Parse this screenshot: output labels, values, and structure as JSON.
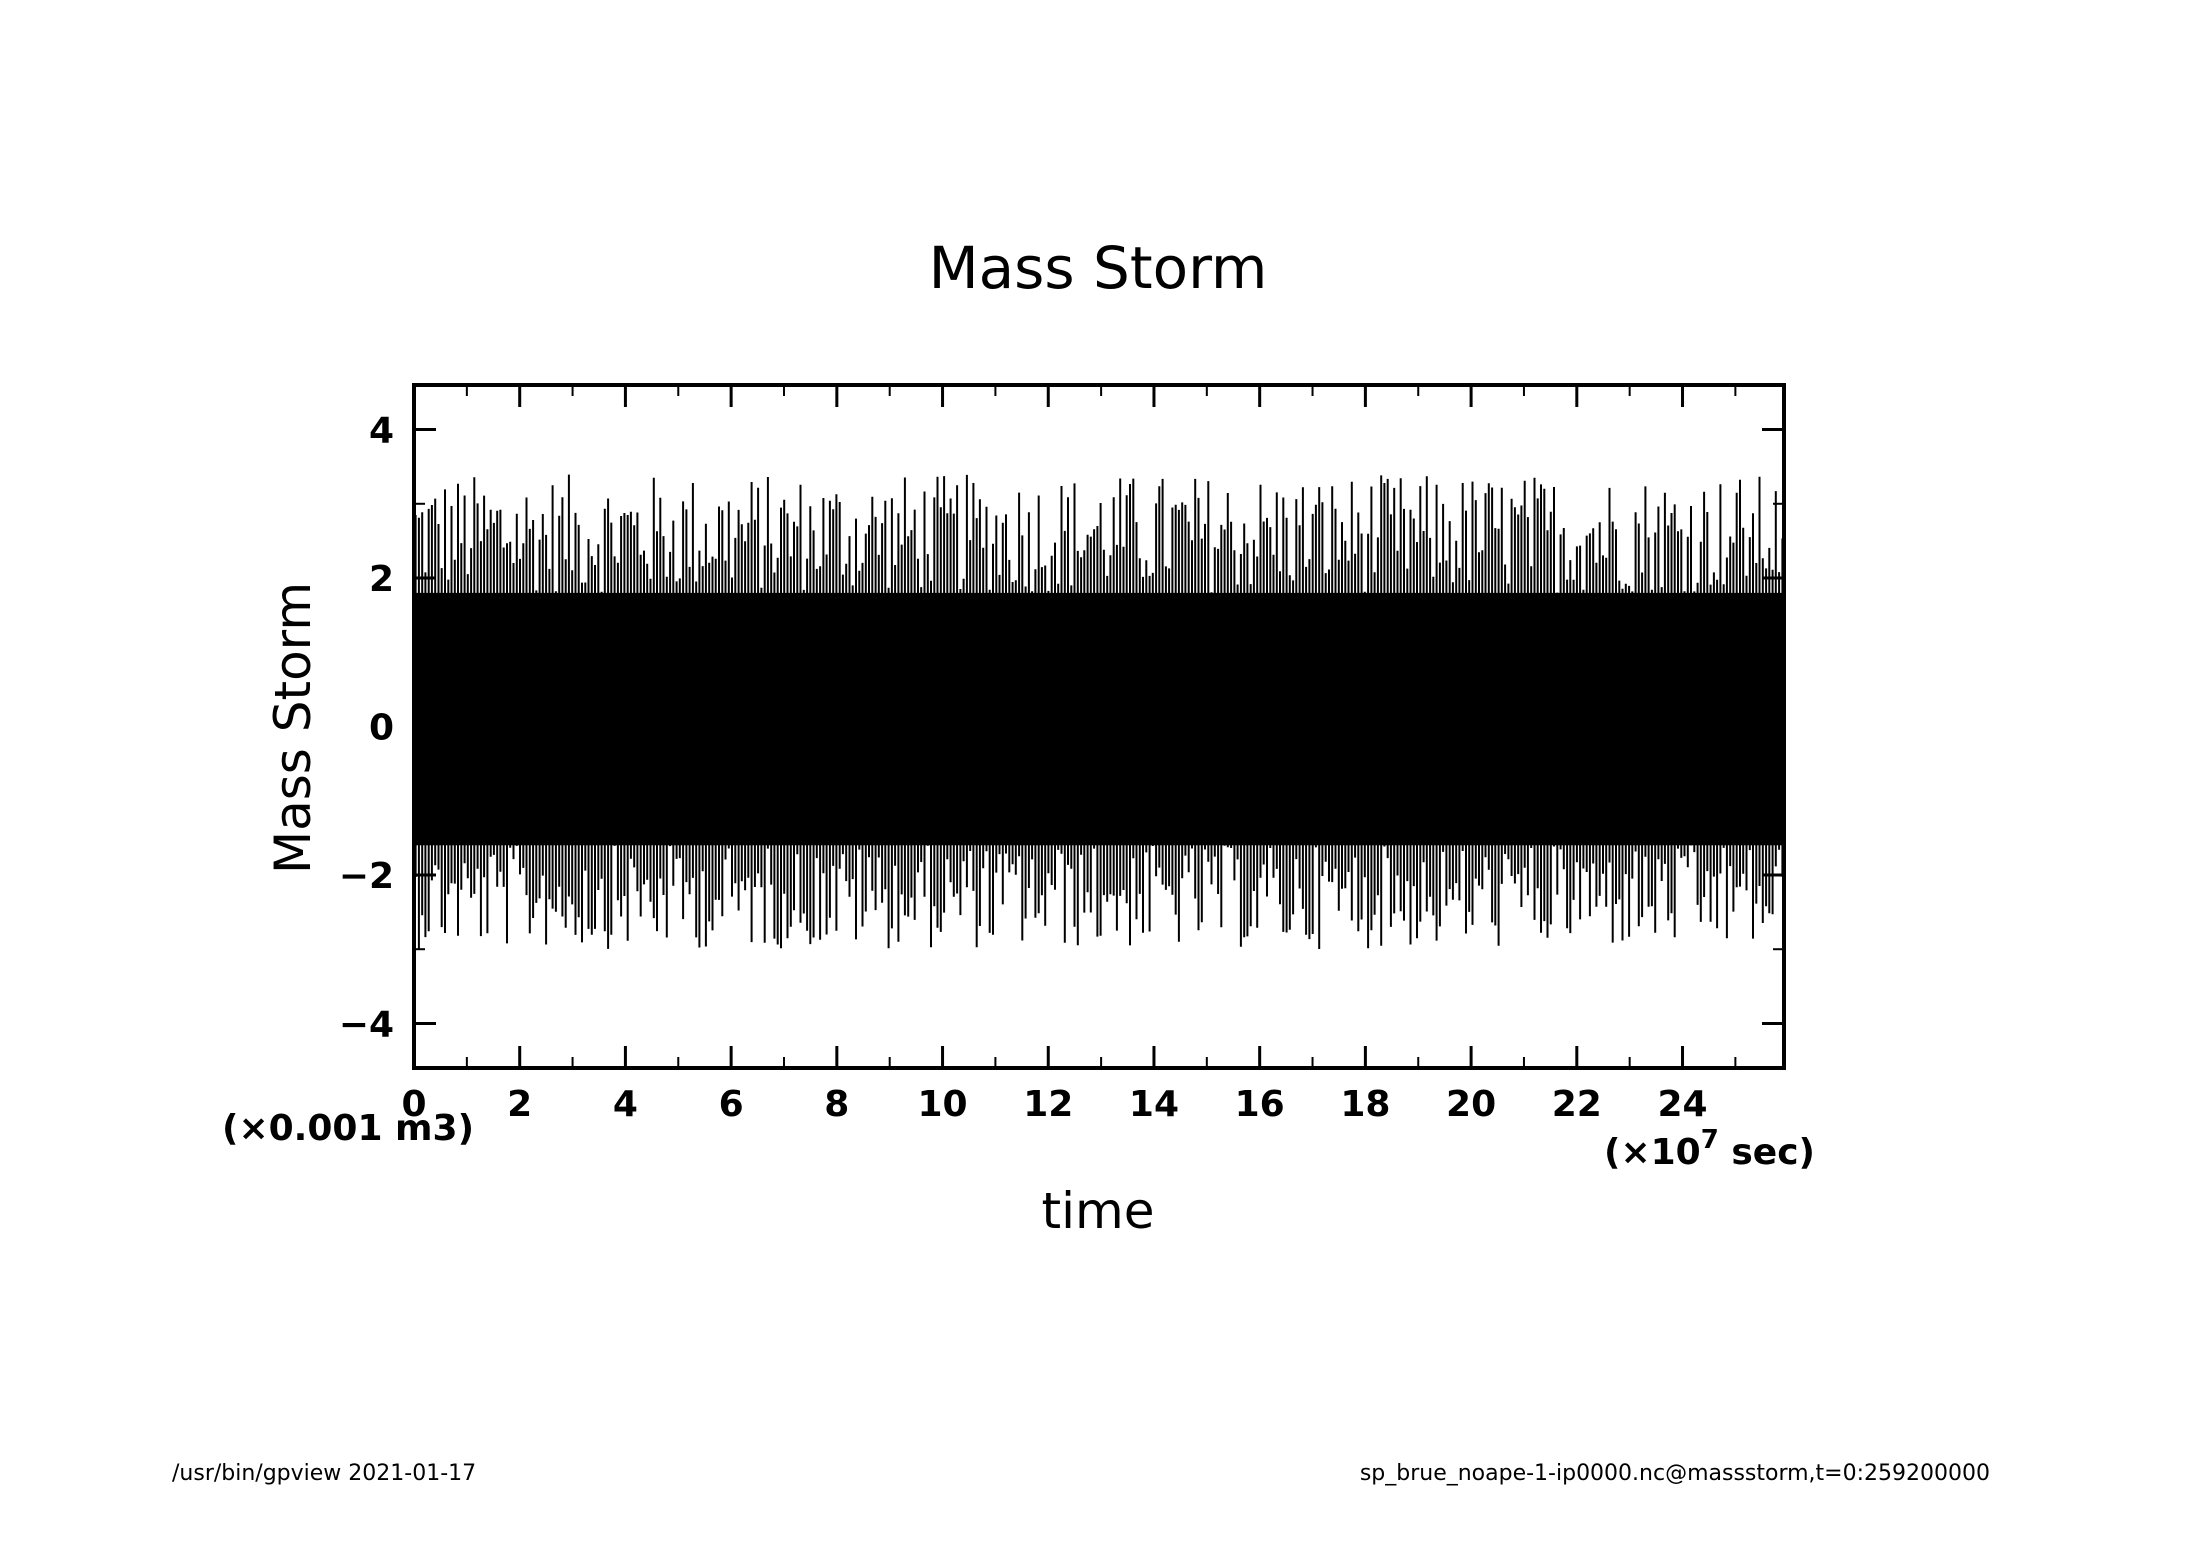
{
  "chart_data": {
    "type": "line",
    "title": "Mass Storm",
    "xlabel": "time",
    "ylabel": "Mass Storm",
    "x_unit": "(×10",
    "x_unit_exp": "7",
    "x_unit_tail": " sec)",
    "y_unit": "(×0.001 m3)",
    "xlim": [
      0,
      25.92
    ],
    "ylim": [
      -4.6,
      4.6
    ],
    "x_ticks": [
      0,
      2,
      4,
      6,
      8,
      10,
      12,
      14,
      16,
      18,
      20,
      22,
      24
    ],
    "y_ticks": [
      -4,
      -2,
      0,
      2,
      4
    ],
    "y_tick_labels": [
      "−4",
      "−2",
      "0",
      "2",
      "4"
    ],
    "grid": false,
    "series": [
      {
        "color": "#000000",
        "description_envelope": {
          "dense_band": [
            -1.6,
            1.8
          ],
          "upper_spikes_max": 3.4,
          "lower_spikes_min": -3.0
        }
      }
    ]
  },
  "footer": {
    "left": "/usr/bin/gpview   2021-01-17",
    "right": "sp_brue_noape-1-ip0000.nc@massstorm,t=0:259200000"
  }
}
